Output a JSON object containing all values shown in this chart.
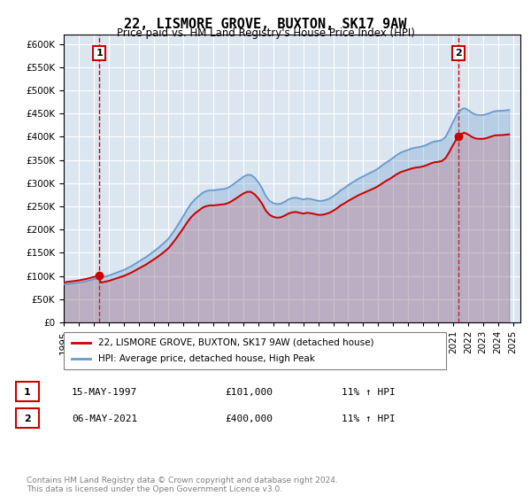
{
  "title": "22, LISMORE GROVE, BUXTON, SK17 9AW",
  "subtitle": "Price paid vs. HM Land Registry's House Price Index (HPI)",
  "background_color": "#dce6f1",
  "plot_bg_color": "#dce6f1",
  "hpi_color": "#6699cc",
  "price_color": "#cc0000",
  "dashed_color": "#cc0000",
  "ylim": [
    0,
    620000
  ],
  "yticks": [
    0,
    50000,
    100000,
    150000,
    200000,
    250000,
    300000,
    350000,
    400000,
    450000,
    500000,
    550000,
    600000
  ],
  "xlim_start": 1995.0,
  "xlim_end": 2025.5,
  "xlabel_years": [
    1995,
    1996,
    1997,
    1998,
    1999,
    2000,
    2001,
    2002,
    2003,
    2004,
    2005,
    2006,
    2007,
    2008,
    2009,
    2010,
    2011,
    2012,
    2013,
    2014,
    2015,
    2016,
    2017,
    2018,
    2019,
    2020,
    2021,
    2022,
    2023,
    2024,
    2025
  ],
  "sale1_year": 1997.37,
  "sale1_price": 101000,
  "sale2_year": 2021.35,
  "sale2_price": 400000,
  "legend_entry1": "22, LISMORE GROVE, BUXTON, SK17 9AW (detached house)",
  "legend_entry2": "HPI: Average price, detached house, High Peak",
  "annotation1_label": "1",
  "annotation2_label": "2",
  "table_row1": [
    "1",
    "15-MAY-1997",
    "£101,000",
    "11% ↑ HPI"
  ],
  "table_row2": [
    "2",
    "06-MAY-2021",
    "£400,000",
    "11% ↑ HPI"
  ],
  "footer": "Contains HM Land Registry data © Crown copyright and database right 2024.\nThis data is licensed under the Open Government Licence v3.0.",
  "hpi_data_x": [
    1995.0,
    1995.25,
    1995.5,
    1995.75,
    1996.0,
    1996.25,
    1996.5,
    1996.75,
    1997.0,
    1997.25,
    1997.5,
    1997.75,
    1998.0,
    1998.25,
    1998.5,
    1998.75,
    1999.0,
    1999.25,
    1999.5,
    1999.75,
    2000.0,
    2000.25,
    2000.5,
    2000.75,
    2001.0,
    2001.25,
    2001.5,
    2001.75,
    2002.0,
    2002.25,
    2002.5,
    2002.75,
    2003.0,
    2003.25,
    2003.5,
    2003.75,
    2004.0,
    2004.25,
    2004.5,
    2004.75,
    2005.0,
    2005.25,
    2005.5,
    2005.75,
    2006.0,
    2006.25,
    2006.5,
    2006.75,
    2007.0,
    2007.25,
    2007.5,
    2007.75,
    2008.0,
    2008.25,
    2008.5,
    2008.75,
    2009.0,
    2009.25,
    2009.5,
    2009.75,
    2010.0,
    2010.25,
    2010.5,
    2010.75,
    2011.0,
    2011.25,
    2011.5,
    2011.75,
    2012.0,
    2012.25,
    2012.5,
    2012.75,
    2013.0,
    2013.25,
    2013.5,
    2013.75,
    2014.0,
    2014.25,
    2014.5,
    2014.75,
    2015.0,
    2015.25,
    2015.5,
    2015.75,
    2016.0,
    2016.25,
    2016.5,
    2016.75,
    2017.0,
    2017.25,
    2017.5,
    2017.75,
    2018.0,
    2018.25,
    2018.5,
    2018.75,
    2019.0,
    2019.25,
    2019.5,
    2019.75,
    2020.0,
    2020.25,
    2020.5,
    2020.75,
    2021.0,
    2021.25,
    2021.5,
    2021.75,
    2022.0,
    2022.25,
    2022.5,
    2022.75,
    2023.0,
    2023.25,
    2023.5,
    2023.75,
    2024.0,
    2024.25,
    2024.5,
    2024.75
  ],
  "hpi_data_y": [
    82000,
    83000,
    84000,
    85000,
    86000,
    87500,
    89000,
    91000,
    93000,
    95000,
    97000,
    99000,
    101000,
    104000,
    107000,
    110000,
    113000,
    117000,
    121000,
    126000,
    131000,
    136000,
    141000,
    147000,
    153000,
    159000,
    166000,
    173000,
    181000,
    192000,
    204000,
    217000,
    230000,
    244000,
    256000,
    265000,
    272000,
    279000,
    283000,
    285000,
    285000,
    286000,
    287000,
    288000,
    291000,
    296000,
    302000,
    308000,
    314000,
    318000,
    318000,
    312000,
    302000,
    289000,
    272000,
    262000,
    257000,
    255000,
    256000,
    260000,
    265000,
    268000,
    269000,
    267000,
    265000,
    267000,
    266000,
    264000,
    262000,
    262000,
    264000,
    267000,
    272000,
    278000,
    285000,
    290000,
    296000,
    301000,
    306000,
    311000,
    315000,
    319000,
    323000,
    327000,
    332000,
    338000,
    344000,
    349000,
    355000,
    361000,
    366000,
    369000,
    372000,
    375000,
    377000,
    378000,
    380000,
    383000,
    387000,
    390000,
    391000,
    393000,
    400000,
    415000,
    432000,
    448000,
    458000,
    462000,
    458000,
    452000,
    448000,
    447000,
    447000,
    449000,
    452000,
    455000,
    456000,
    456000,
    457000,
    458000
  ],
  "price_data_x": [
    1997.37,
    2021.35
  ],
  "price_data_y": [
    101000,
    400000
  ]
}
